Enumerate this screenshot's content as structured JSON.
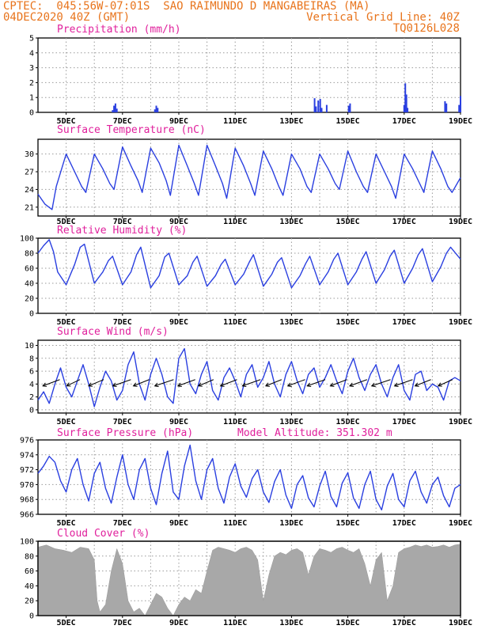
{
  "header": {
    "line1_left": "CPTEC:  045:56W-07:01S  SAO RAIMUNDO D MANGABEIRAS (MA)",
    "line2_left": "04DEC2020 40Z (GMT)",
    "line2_right": "Vertical Grid Line: 40Z",
    "line3_right": "TQ0126L028"
  },
  "colors": {
    "header": "#e8741c",
    "title": "#e0209c",
    "line": "#2a3fe0",
    "bars": "#2a3fe0",
    "cloud": "#a8a8a8",
    "grid": "#9a9a9a"
  },
  "chart_data": [
    {
      "type": "bar",
      "title": "Precipitation (mm/h)",
      "ylim": [
        0,
        5
      ],
      "yticks": [
        0,
        1,
        2,
        3,
        4,
        5
      ],
      "xlim": [
        4.0,
        19.0
      ],
      "xtick_positions": [
        5,
        7,
        9,
        11,
        13,
        15,
        17,
        19
      ],
      "xtick_labels": [
        "5DEC",
        "7DEC",
        "9DEC",
        "11DEC",
        "13DEC",
        "15DEC",
        "17DEC",
        "19DEC"
      ],
      "grid": true,
      "x": [
        6.65,
        6.7,
        6.75,
        6.8,
        8.15,
        8.2,
        8.25,
        13.82,
        13.87,
        13.95,
        14.02,
        14.07,
        14.25,
        15.03,
        15.08,
        17.0,
        17.04,
        17.08,
        17.12,
        18.45,
        18.5,
        18.95,
        19.0
      ],
      "values": [
        0.15,
        0.45,
        0.6,
        0.25,
        0.2,
        0.45,
        0.3,
        0.95,
        0.4,
        0.8,
        0.9,
        0.3,
        0.5,
        0.45,
        0.6,
        0.5,
        1.95,
        1.2,
        0.3,
        0.75,
        0.6,
        0.5,
        1.1
      ]
    },
    {
      "type": "line",
      "title": "Surface Temperature (nC)",
      "ylim": [
        19.5,
        32.5
      ],
      "yticks": [
        21,
        24,
        27,
        30
      ],
      "xlim": [
        4.0,
        19.0
      ],
      "xtick_positions": [
        5,
        7,
        9,
        11,
        13,
        15,
        17,
        19
      ],
      "xtick_labels": [
        "5DEC",
        "7DEC",
        "9DEC",
        "11DEC",
        "13DEC",
        "15DEC",
        "17DEC",
        "19DEC"
      ],
      "grid": true,
      "x": [
        4.0,
        4.25,
        4.5,
        4.65,
        5.0,
        5.3,
        5.55,
        5.7,
        6.0,
        6.3,
        6.55,
        6.7,
        7.0,
        7.3,
        7.55,
        7.7,
        8.0,
        8.3,
        8.55,
        8.7,
        9.0,
        9.3,
        9.55,
        9.7,
        10.0,
        10.3,
        10.55,
        10.7,
        11.0,
        11.3,
        11.55,
        11.7,
        12.0,
        12.3,
        12.55,
        12.7,
        13.0,
        13.3,
        13.55,
        13.7,
        14.0,
        14.3,
        14.55,
        14.7,
        15.0,
        15.3,
        15.55,
        15.7,
        16.0,
        16.3,
        16.55,
        16.7,
        17.0,
        17.3,
        17.55,
        17.7,
        18.0,
        18.3,
        18.55,
        18.7,
        19.0
      ],
      "series": [
        {
          "values": [
            23.2,
            21.5,
            20.6,
            24.5,
            30.0,
            27.0,
            24.5,
            23.5,
            30.0,
            27.5,
            25.0,
            24.0,
            31.2,
            28.0,
            25.5,
            23.5,
            31.0,
            28.5,
            25.5,
            23.0,
            31.5,
            28.0,
            25.0,
            23.0,
            31.5,
            28.0,
            25.0,
            22.5,
            31.0,
            28.0,
            25.0,
            23.0,
            30.5,
            27.5,
            24.5,
            23.0,
            30.0,
            27.5,
            24.5,
            23.5,
            30.0,
            27.5,
            25.0,
            24.0,
            30.5,
            27.0,
            24.5,
            23.5,
            30.0,
            27.0,
            24.5,
            22.5,
            30.0,
            27.5,
            25.0,
            23.5,
            30.5,
            27.5,
            24.5,
            23.5,
            26.0
          ]
        }
      ]
    },
    {
      "type": "line",
      "title": "Relative Humidity (%)",
      "ylim": [
        0,
        100
      ],
      "yticks": [
        0,
        20,
        40,
        60,
        80,
        100
      ],
      "xlim": [
        4.0,
        19.0
      ],
      "xtick_positions": [
        5,
        7,
        9,
        11,
        13,
        15,
        17,
        19
      ],
      "xtick_labels": [
        "5DEC",
        "7DEC",
        "9DEC",
        "11DEC",
        "13DEC",
        "15DEC",
        "17DEC",
        "19DEC"
      ],
      "grid": true,
      "x": [
        4.0,
        4.2,
        4.4,
        4.55,
        4.7,
        5.0,
        5.3,
        5.5,
        5.65,
        6.0,
        6.3,
        6.5,
        6.65,
        7.0,
        7.3,
        7.5,
        7.65,
        8.0,
        8.3,
        8.5,
        8.65,
        9.0,
        9.3,
        9.5,
        9.65,
        10.0,
        10.3,
        10.5,
        10.65,
        11.0,
        11.3,
        11.5,
        11.65,
        12.0,
        12.3,
        12.5,
        12.65,
        13.0,
        13.3,
        13.5,
        13.65,
        14.0,
        14.3,
        14.5,
        14.65,
        15.0,
        15.3,
        15.5,
        15.65,
        16.0,
        16.3,
        16.5,
        16.65,
        17.0,
        17.3,
        17.5,
        17.65,
        18.0,
        18.3,
        18.5,
        18.65,
        19.0
      ],
      "series": [
        {
          "values": [
            80,
            90,
            98,
            82,
            55,
            38,
            65,
            88,
            92,
            40,
            55,
            70,
            76,
            38,
            55,
            78,
            88,
            34,
            50,
            75,
            80,
            38,
            50,
            68,
            76,
            36,
            50,
            65,
            72,
            38,
            52,
            68,
            78,
            36,
            52,
            68,
            74,
            34,
            50,
            66,
            76,
            38,
            55,
            72,
            80,
            38,
            55,
            72,
            82,
            40,
            58,
            76,
            84,
            40,
            60,
            78,
            86,
            42,
            62,
            80,
            88,
            72
          ]
        }
      ]
    },
    {
      "type": "line",
      "title": "Surface Wind (m/s)",
      "ylim": [
        -0.5,
        10.8
      ],
      "yticks": [
        0,
        2,
        4,
        6,
        8,
        10
      ],
      "xlim": [
        4.0,
        19.0
      ],
      "xtick_positions": [
        5,
        7,
        9,
        11,
        13,
        15,
        17,
        19
      ],
      "xtick_labels": [
        "5DEC",
        "7DEC",
        "9DEC",
        "11DEC",
        "13DEC",
        "15DEC",
        "17DEC",
        "19DEC"
      ],
      "grid": true,
      "x": [
        4.0,
        4.2,
        4.4,
        4.6,
        4.8,
        5.0,
        5.2,
        5.4,
        5.6,
        5.8,
        6.0,
        6.2,
        6.4,
        6.6,
        6.8,
        7.0,
        7.2,
        7.4,
        7.6,
        7.8,
        8.0,
        8.2,
        8.4,
        8.6,
        8.8,
        9.0,
        9.2,
        9.4,
        9.6,
        9.8,
        10.0,
        10.2,
        10.4,
        10.6,
        10.8,
        11.0,
        11.2,
        11.4,
        11.6,
        11.8,
        12.0,
        12.2,
        12.4,
        12.6,
        12.8,
        13.0,
        13.2,
        13.4,
        13.6,
        13.8,
        14.0,
        14.2,
        14.4,
        14.6,
        14.8,
        15.0,
        15.2,
        15.4,
        15.6,
        15.8,
        16.0,
        16.2,
        16.4,
        16.6,
        16.8,
        17.0,
        17.2,
        17.4,
        17.6,
        17.8,
        18.0,
        18.2,
        18.4,
        18.6,
        18.8,
        19.0
      ],
      "series": [
        {
          "values": [
            1.5,
            2.8,
            1.0,
            4.0,
            6.5,
            3.5,
            2.0,
            4.5,
            7.0,
            4.0,
            0.5,
            3.5,
            6.0,
            4.5,
            1.5,
            3.0,
            7.0,
            9.0,
            4.0,
            1.5,
            5.5,
            8.0,
            5.5,
            2.0,
            1.0,
            8.0,
            9.5,
            4.0,
            2.5,
            5.5,
            7.5,
            3.0,
            1.5,
            5.0,
            6.5,
            4.5,
            2.0,
            5.5,
            7.0,
            3.5,
            5.0,
            7.5,
            4.0,
            2.0,
            5.5,
            7.5,
            4.5,
            2.5,
            5.5,
            6.5,
            3.5,
            5.0,
            7.0,
            4.5,
            2.5,
            6.0,
            8.0,
            5.0,
            3.0,
            5.5,
            7.0,
            4.0,
            2.0,
            5.0,
            7.0,
            3.0,
            1.5,
            5.5,
            6.0,
            3.0,
            4.0,
            3.5,
            1.5,
            4.5,
            5.0,
            4.5
          ]
        }
      ],
      "wind_vectors": {
        "x": [
          4.4,
          5.2,
          6.0,
          6.9,
          7.6,
          8.4,
          9.2,
          9.9,
          10.7,
          11.5,
          12.3,
          13.1,
          13.8,
          14.6,
          15.3,
          16.1,
          16.9,
          17.6,
          18.4
        ],
        "speed": [
          4.5,
          3.5,
          4.0,
          4.8,
          4.2,
          5.0,
          4.6,
          4.0,
          4.4,
          4.8,
          4.2,
          4.6,
          4.8,
          4.4,
          4.6,
          5.0,
          4.8,
          4.2,
          3.8
        ]
      }
    },
    {
      "type": "line",
      "title": "Surface Pressure (hPa)",
      "annotation": "Model Altitude: 351.302 m",
      "ylim": [
        966,
        976
      ],
      "yticks": [
        966,
        968,
        970,
        972,
        974,
        976
      ],
      "xlim": [
        4.0,
        19.0
      ],
      "xtick_positions": [
        5,
        7,
        9,
        11,
        13,
        15,
        17,
        19
      ],
      "xtick_labels": [
        "5DEC",
        "7DEC",
        "9DEC",
        "11DEC",
        "13DEC",
        "15DEC",
        "17DEC",
        "19DEC"
      ],
      "grid": true,
      "x": [
        4.0,
        4.2,
        4.4,
        4.6,
        4.8,
        5.0,
        5.2,
        5.4,
        5.6,
        5.8,
        6.0,
        6.2,
        6.4,
        6.6,
        6.8,
        7.0,
        7.2,
        7.4,
        7.6,
        7.8,
        8.0,
        8.2,
        8.4,
        8.6,
        8.8,
        9.0,
        9.2,
        9.4,
        9.6,
        9.8,
        10.0,
        10.2,
        10.4,
        10.6,
        10.8,
        11.0,
        11.2,
        11.4,
        11.6,
        11.8,
        12.0,
        12.2,
        12.4,
        12.6,
        12.8,
        13.0,
        13.2,
        13.4,
        13.6,
        13.8,
        14.0,
        14.2,
        14.4,
        14.6,
        14.8,
        15.0,
        15.2,
        15.4,
        15.6,
        15.8,
        16.0,
        16.2,
        16.4,
        16.6,
        16.8,
        17.0,
        17.2,
        17.4,
        17.6,
        17.8,
        18.0,
        18.2,
        18.4,
        18.6,
        18.8,
        19.0
      ],
      "series": [
        {
          "values": [
            971.5,
            972.5,
            973.8,
            973.0,
            970.5,
            969.0,
            972.0,
            973.5,
            970.0,
            967.8,
            971.5,
            973.0,
            969.5,
            967.5,
            971.0,
            974.0,
            970.0,
            968.0,
            972.0,
            973.5,
            969.5,
            967.3,
            971.5,
            974.5,
            969.0,
            968.0,
            972.5,
            975.3,
            970.5,
            968.0,
            972.0,
            973.5,
            969.5,
            967.5,
            971.0,
            972.8,
            969.8,
            968.3,
            970.8,
            972.0,
            969.0,
            967.6,
            970.4,
            972.0,
            968.6,
            966.8,
            970.0,
            971.2,
            968.2,
            967.0,
            969.8,
            971.8,
            968.4,
            967.0,
            970.2,
            971.6,
            968.2,
            966.8,
            970.0,
            971.8,
            968.0,
            966.6,
            969.8,
            971.5,
            968.0,
            967.0,
            970.5,
            971.8,
            969.0,
            967.5,
            970.0,
            971.0,
            968.5,
            967.0,
            969.5,
            970.0
          ]
        }
      ]
    },
    {
      "type": "area",
      "title": "Cloud Cover (%)",
      "ylim": [
        0,
        100
      ],
      "yticks": [
        0,
        20,
        40,
        60,
        80,
        100
      ],
      "xlim": [
        4.0,
        19.0
      ],
      "xtick_positions": [
        5,
        7,
        9,
        11,
        13,
        15,
        17,
        19
      ],
      "xtick_labels": [
        "5DEC",
        "7DEC",
        "9DEC",
        "11DEC",
        "13DEC",
        "15DEC",
        "17DEC",
        "19DEC"
      ],
      "grid": true,
      "x": [
        4.0,
        4.3,
        4.6,
        4.9,
        5.2,
        5.5,
        5.8,
        6.0,
        6.1,
        6.2,
        6.4,
        6.6,
        6.8,
        7.0,
        7.1,
        7.2,
        7.4,
        7.6,
        7.8,
        8.0,
        8.2,
        8.4,
        8.6,
        8.8,
        9.0,
        9.2,
        9.4,
        9.6,
        9.8,
        10.0,
        10.2,
        10.4,
        10.6,
        10.8,
        11.0,
        11.2,
        11.4,
        11.6,
        11.8,
        12.0,
        12.2,
        12.4,
        12.6,
        12.8,
        13.0,
        13.2,
        13.4,
        13.6,
        13.8,
        14.0,
        14.2,
        14.4,
        14.6,
        14.8,
        15.0,
        15.2,
        15.4,
        15.6,
        15.8,
        16.0,
        16.2,
        16.4,
        16.6,
        16.8,
        17.0,
        17.2,
        17.4,
        17.6,
        17.8,
        18.0,
        18.2,
        18.4,
        18.6,
        18.8,
        19.0
      ],
      "series": [
        {
          "values": [
            92,
            95,
            90,
            88,
            85,
            92,
            90,
            75,
            20,
            5,
            15,
            60,
            90,
            70,
            45,
            20,
            5,
            10,
            0,
            15,
            30,
            25,
            10,
            0,
            15,
            25,
            20,
            35,
            30,
            60,
            88,
            92,
            90,
            88,
            85,
            90,
            92,
            88,
            75,
            20,
            55,
            80,
            85,
            82,
            88,
            90,
            85,
            55,
            80,
            90,
            88,
            85,
            90,
            92,
            88,
            85,
            90,
            70,
            40,
            75,
            85,
            20,
            40,
            85,
            90,
            92,
            95,
            93,
            95,
            92,
            93,
            95,
            92,
            95,
            96
          ]
        }
      ]
    }
  ]
}
